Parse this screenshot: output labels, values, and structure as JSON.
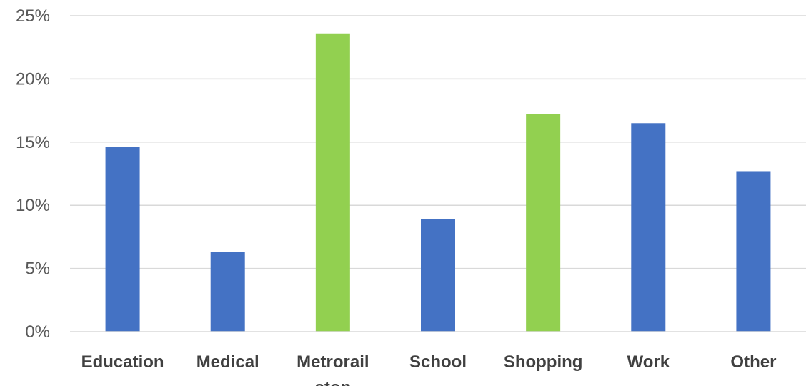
{
  "chart_data": {
    "type": "bar",
    "title": "",
    "xlabel": "",
    "ylabel": "",
    "categories": [
      "Education",
      "Medical",
      "Metrorail",
      "School",
      "Shopping",
      "Work",
      "Other"
    ],
    "category_second_lines": [
      "",
      "",
      "stop",
      "",
      "",
      "",
      ""
    ],
    "values": [
      14.6,
      6.3,
      23.6,
      8.9,
      17.2,
      16.5,
      12.7
    ],
    "value_unit": "%",
    "ylim": [
      0,
      25
    ],
    "yticks": [
      0,
      5,
      10,
      15,
      20,
      25
    ],
    "ytick_labels": [
      "0%",
      "5%",
      "10%",
      "15%",
      "20%",
      "25%"
    ],
    "bar_colors": [
      "#4472c4",
      "#4472c4",
      "#92d050",
      "#4472c4",
      "#92d050",
      "#4472c4",
      "#4472c4"
    ],
    "grid": true,
    "legend": "none"
  }
}
